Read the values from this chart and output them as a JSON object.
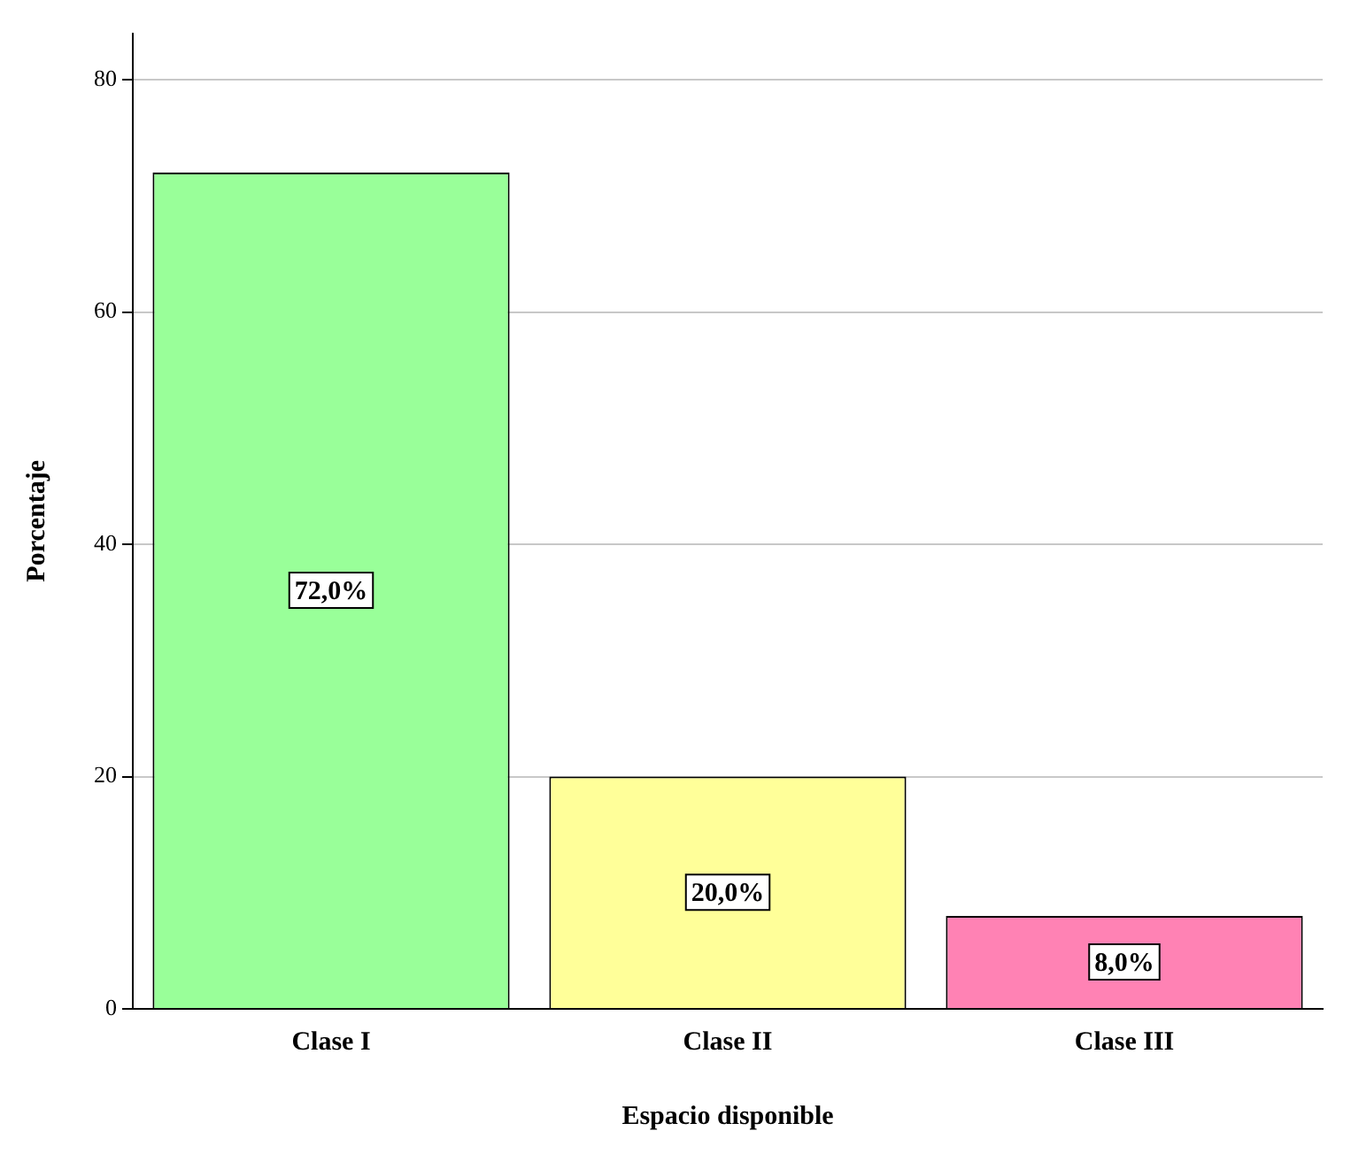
{
  "chart_data": {
    "type": "bar",
    "xlabel": "Espacio disponible",
    "ylabel": "Porcentaje",
    "categories": [
      "Clase I",
      "Clase II",
      "Clase III"
    ],
    "values": [
      72,
      20,
      8
    ],
    "colors": [
      "#99ff99",
      "#ffff99",
      "#ff82b4"
    ],
    "value_labels": [
      "72,0%",
      "20,0%",
      "8,0%"
    ],
    "ylim": [
      0,
      84
    ],
    "yticks": [
      0,
      20,
      40,
      60,
      80
    ],
    "grid": "y"
  }
}
